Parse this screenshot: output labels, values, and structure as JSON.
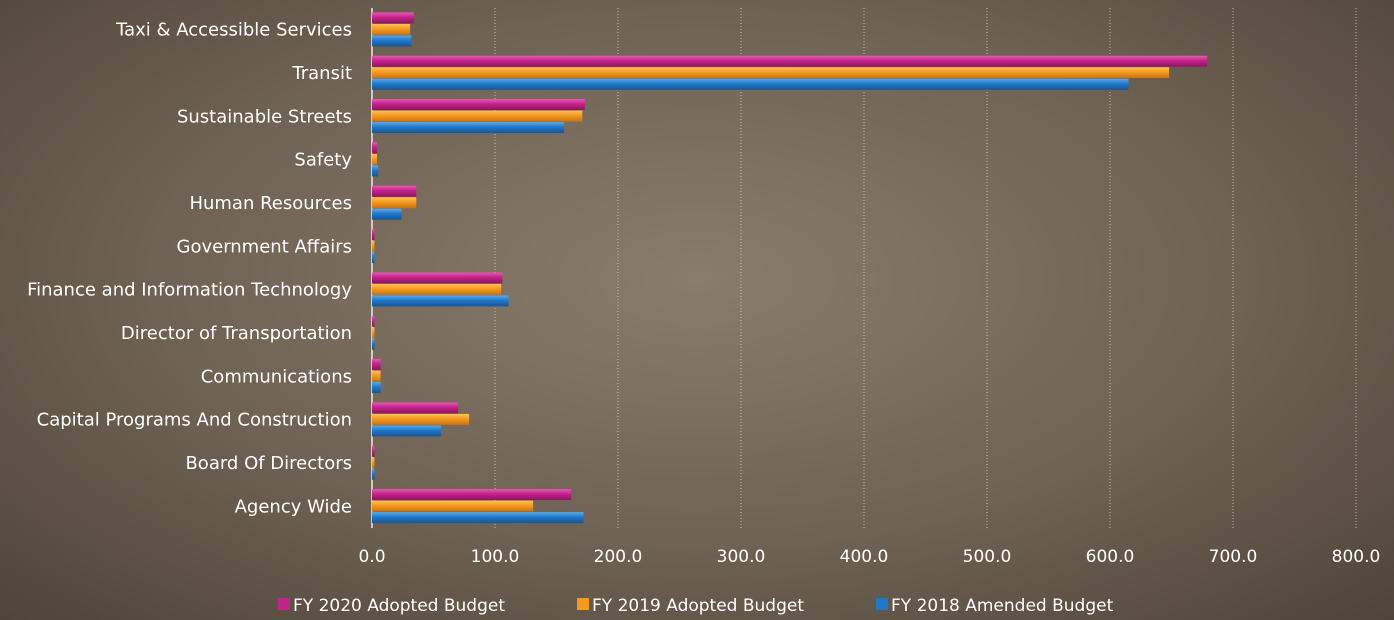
{
  "chart_data": {
    "type": "bar",
    "orientation": "horizontal",
    "title": "",
    "xlabel": "",
    "ylabel": "",
    "xlim": [
      0,
      800
    ],
    "x_ticks": [
      "0.0",
      "100.0",
      "200.0",
      "300.0",
      "400.0",
      "500.0",
      "600.0",
      "700.0",
      "800.0"
    ],
    "grid": "vertical dotted",
    "legend_position": "bottom",
    "categories": [
      "Taxi & Accessible Services",
      "Transit",
      "Sustainable Streets",
      "Safety",
      "Human Resources",
      "Government Affairs",
      "Finance and Information Technology",
      "Director of Transportation",
      "Communications",
      "Capital Programs And Construction",
      "Board Of Directors",
      "Agency Wide"
    ],
    "series": [
      {
        "name": "FY 2020 Adopted Budget",
        "color": "#c2228a",
        "values": [
          34,
          679,
          173,
          4,
          36,
          2,
          106,
          2,
          7,
          70,
          2,
          162
        ]
      },
      {
        "name": "FY 2019 Adopted Budget",
        "color": "#f59a1e",
        "values": [
          31,
          648,
          171,
          4,
          36,
          2,
          105,
          2,
          7,
          79,
          2,
          131
        ]
      },
      {
        "name": "FY 2018 Amended Budget",
        "color": "#1f78c8",
        "values": [
          32,
          615,
          156,
          5,
          24,
          2,
          111,
          2,
          7,
          56,
          2,
          172
        ]
      }
    ]
  }
}
